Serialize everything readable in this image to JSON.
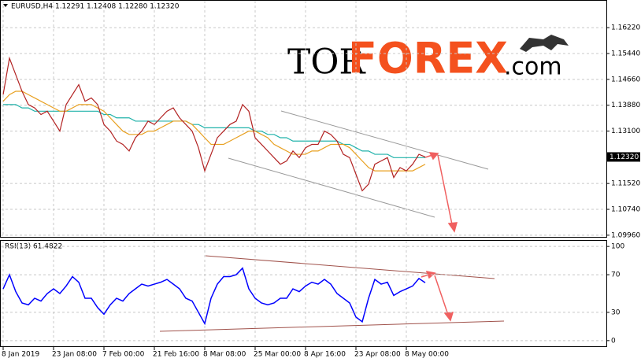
{
  "logo": {
    "part1": "TOR",
    "part2": "FOREX",
    "part3": ".com"
  },
  "chart_data": [
    {
      "type": "line",
      "title": "EURUSD,H4  1.12291 1.12408 1.12280 1.12320",
      "price_tag": "1.12320",
      "categories": [
        "8 Jan 2019",
        null,
        null,
        null,
        null,
        null,
        null,
        null,
        "23 Jan 08:00",
        null,
        null,
        null,
        null,
        null,
        null,
        null,
        "7 Feb 00:00",
        null,
        null,
        null,
        null,
        null,
        null,
        null,
        "21 Feb 16:00",
        null,
        null,
        null,
        null,
        null,
        null,
        null,
        "8 Mar 08:00",
        null,
        null,
        null,
        null,
        null,
        null,
        null,
        "25 Mar 00:00",
        null,
        null,
        null,
        null,
        null,
        null,
        null,
        "8 Apr 16:00",
        null,
        null,
        null,
        null,
        null,
        null,
        null,
        "23 Apr 08:00",
        null,
        null,
        null,
        null,
        null,
        null,
        null,
        "8 May 00:00",
        null,
        null,
        null
      ],
      "ylim": [
        1.0991,
        1.1703
      ],
      "yticks": [
        {
          "value": 1.1622,
          "label": "1.16220"
        },
        {
          "value": 1.1544,
          "label": "1.15440"
        },
        {
          "value": 1.1466,
          "label": "1.14660"
        },
        {
          "value": 1.1388,
          "label": "1.13880"
        },
        {
          "value": 1.131,
          "label": "1.13100"
        },
        {
          "value": 1.1152,
          "label": "1.11520"
        },
        {
          "value": 1.1074,
          "label": "1.10740"
        },
        {
          "value": 1.0996,
          "label": "1.09960"
        }
      ],
      "grid": true,
      "series": [
        {
          "color": "#20b2aa",
          "values": [
            1.139,
            1.139,
            1.139,
            1.138,
            1.138,
            1.137,
            1.137,
            1.137,
            1.137,
            1.137,
            1.137,
            1.137,
            1.137,
            1.137,
            1.137,
            1.137,
            1.136,
            1.136,
            1.135,
            1.135,
            1.135,
            1.134,
            1.134,
            1.134,
            1.134,
            1.134,
            1.134,
            1.134,
            1.134,
            1.134,
            1.133,
            1.133,
            1.132,
            1.132,
            1.132,
            1.132,
            1.132,
            1.132,
            1.132,
            1.132,
            1.131,
            1.131,
            1.13,
            1.13,
            1.129,
            1.129,
            1.128,
            1.128,
            1.128,
            1.128,
            1.128,
            1.128,
            1.128,
            1.128,
            1.127,
            1.127,
            1.126,
            1.125,
            1.125,
            1.124,
            1.124,
            1.124,
            1.123,
            1.123,
            1.123,
            1.123,
            1.123,
            1.123
          ]
        },
        {
          "color": "#e8a020",
          "values": [
            1.14,
            1.142,
            1.143,
            1.143,
            1.142,
            1.141,
            1.14,
            1.139,
            1.138,
            1.137,
            1.137,
            1.138,
            1.139,
            1.139,
            1.139,
            1.138,
            1.137,
            1.135,
            1.133,
            1.131,
            1.13,
            1.13,
            1.13,
            1.131,
            1.131,
            1.132,
            1.133,
            1.134,
            1.134,
            1.134,
            1.133,
            1.131,
            1.129,
            1.127,
            1.127,
            1.127,
            1.128,
            1.129,
            1.13,
            1.131,
            1.131,
            1.13,
            1.129,
            1.127,
            1.126,
            1.125,
            1.124,
            1.124,
            1.124,
            1.125,
            1.125,
            1.126,
            1.127,
            1.127,
            1.127,
            1.126,
            1.124,
            1.122,
            1.12,
            1.119,
            1.119,
            1.119,
            1.119,
            1.119,
            1.119,
            1.119,
            1.12,
            1.121
          ]
        },
        {
          "color": "#b22222",
          "values": [
            1.142,
            1.153,
            1.148,
            1.143,
            1.139,
            1.138,
            1.136,
            1.137,
            1.134,
            1.131,
            1.139,
            1.142,
            1.145,
            1.14,
            1.141,
            1.139,
            1.133,
            1.131,
            1.128,
            1.127,
            1.125,
            1.129,
            1.131,
            1.134,
            1.133,
            1.135,
            1.137,
            1.138,
            1.135,
            1.133,
            1.131,
            1.126,
            1.119,
            1.124,
            1.129,
            1.131,
            1.133,
            1.134,
            1.139,
            1.137,
            1.129,
            1.127,
            1.125,
            1.123,
            1.121,
            1.122,
            1.125,
            1.123,
            1.126,
            1.127,
            1.127,
            1.131,
            1.13,
            1.128,
            1.124,
            1.123,
            1.118,
            1.113,
            1.115,
            1.121,
            1.122,
            1.123,
            1.117,
            1.12,
            1.119,
            1.121,
            1.124,
            1.1232
          ]
        }
      ]
    },
    {
      "type": "line",
      "title": "RSI(13) 61.4822",
      "ylim": [
        -6,
        106
      ],
      "yticks": [
        0,
        30,
        70,
        100
      ],
      "grid": true,
      "series": [
        {
          "color": "#0000ff",
          "values": [
            55,
            70,
            52,
            40,
            38,
            45,
            42,
            50,
            55,
            50,
            58,
            68,
            62,
            45,
            45,
            35,
            28,
            38,
            45,
            42,
            50,
            55,
            60,
            58,
            60,
            62,
            65,
            60,
            55,
            45,
            42,
            30,
            18,
            45,
            60,
            68,
            68,
            70,
            77,
            55,
            45,
            40,
            38,
            40,
            45,
            45,
            55,
            52,
            58,
            62,
            60,
            65,
            60,
            50,
            45,
            40,
            25,
            20,
            45,
            65,
            60,
            62,
            48,
            52,
            55,
            58,
            66,
            61.48
          ]
        }
      ]
    }
  ]
}
